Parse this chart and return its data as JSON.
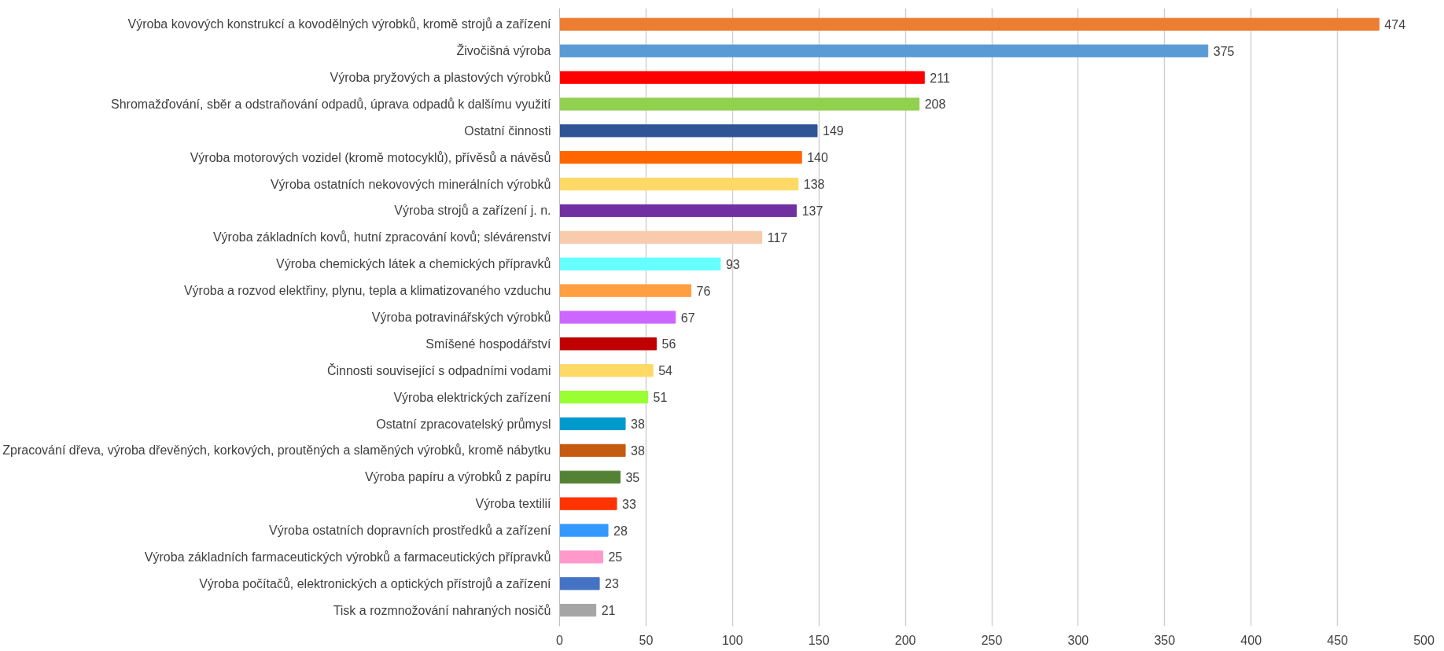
{
  "chart_data": {
    "type": "bar",
    "orientation": "horizontal",
    "categories": [
      "Výroba kovových konstrukcí a kovodělných výrobků, kromě strojů a zařízení",
      "Živočišná výroba",
      "Výroba pryžových a plastových výrobků",
      "Shromažďování, sběr a odstraňování odpadů, úprava odpadů k dalšímu využití",
      "Ostatní činnosti",
      "Výroba motorových vozidel (kromě motocyklů), přívěsů a návěsů",
      "Výroba ostatních nekovových minerálních výrobků",
      "Výroba strojů a zařízení j. n.",
      "Výroba základních kovů, hutní zpracování kovů; slévárenství",
      "Výroba chemických látek a chemických přípravků",
      "Výroba a rozvod elektřiny, plynu, tepla a klimatizovaného vzduchu",
      "Výroba potravinářských výrobků",
      "Smíšené hospodářství",
      "Činnosti související s odpadními vodami",
      "Výroba elektrických zařízení",
      "Ostatní zpracovatelský průmysl",
      "Zpracování dřeva, výroba dřevěných, korkových, proutěných a slaměných výrobků, kromě nábytku",
      "Výroba papíru a výrobků z papíru",
      "Výroba textilií",
      "Výroba ostatních dopravních prostředků a zařízení",
      "Výroba základních farmaceutických výrobků a farmaceutických přípravků",
      "Výroba počítačů, elektronických a optických přístrojů a zařízení",
      "Tisk a rozmnožování nahraných nosičů"
    ],
    "values": [
      474,
      375,
      211,
      208,
      149,
      140,
      138,
      137,
      117,
      93,
      76,
      67,
      56,
      54,
      51,
      38,
      38,
      35,
      33,
      28,
      25,
      23,
      21
    ],
    "colors": [
      "#ed7d31",
      "#5b9bd5",
      "#ff0000",
      "#92d050",
      "#2f5597",
      "#ff6600",
      "#ffd966",
      "#7030a0",
      "#f8cbad",
      "#66ffff",
      "#ff9f40",
      "#cc66ff",
      "#c00000",
      "#ffd966",
      "#99ff33",
      "#0099cc",
      "#c55a11",
      "#548235",
      "#ff3300",
      "#3399ff",
      "#ff99cc",
      "#4472c4",
      "#a5a5a5"
    ],
    "xlim": [
      0,
      500
    ],
    "xticks": [
      0,
      50,
      100,
      150,
      200,
      250,
      300,
      350,
      400,
      450,
      500
    ],
    "grid": "x",
    "data_labels": true
  }
}
